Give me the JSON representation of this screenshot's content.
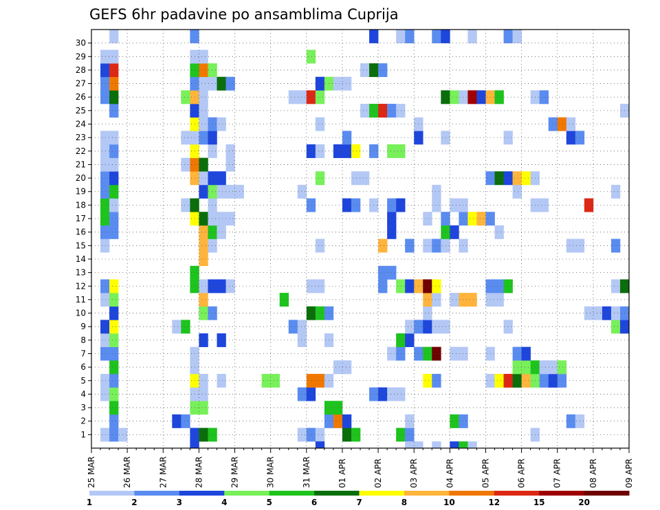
{
  "chart_data": {
    "type": "heatmap",
    "title": "GEFS 6hr padavine po ansamblima Cuprija",
    "x_tick_labels": [
      "25 MAR",
      "26 MAR",
      "27 MAR",
      "28 MAR",
      "29 MAR",
      "30 MAR",
      "31 MAR",
      "01 APR",
      "02 APR",
      "03 APR",
      "04 APR",
      "05 APR",
      "06 APR",
      "07 APR",
      "08 APR",
      "09 APR"
    ],
    "y_tick_labels": [
      "1",
      "2",
      "3",
      "4",
      "5",
      "6",
      "7",
      "8",
      "9",
      "10",
      "11",
      "12",
      "13",
      "14",
      "15",
      "16",
      "17",
      "18",
      "19",
      "20",
      "21",
      "22",
      "23",
      "24",
      "25",
      "26",
      "27",
      "28",
      "29",
      "30"
    ],
    "time_steps_per_day": 4,
    "n_time_steps": 60,
    "grid": true,
    "legend": {
      "placement": "bottom",
      "levels": [
        "1",
        "2",
        "3",
        "4",
        "5",
        "6",
        "7",
        "8",
        "10",
        "12",
        "15",
        "20"
      ],
      "colors": [
        "#b4c8f5",
        "#5a8cf0",
        "#1e46dc",
        "#78f05a",
        "#1ec31e",
        "#0a6e0a",
        "#ffff00",
        "#ffb43c",
        "#f07800",
        "#dc2814",
        "#a00000",
        "#6e0000"
      ]
    },
    "cells": [
      [
        1,
        2,
        1
      ],
      [
        1,
        3,
        2
      ],
      [
        1,
        4,
        1
      ],
      [
        1,
        12,
        3
      ],
      [
        1,
        13,
        6
      ],
      [
        1,
        14,
        5
      ],
      [
        1,
        24,
        1
      ],
      [
        1,
        25,
        2
      ],
      [
        1,
        26,
        1
      ],
      [
        1,
        29,
        6
      ],
      [
        1,
        30,
        5
      ],
      [
        1,
        35,
        5
      ],
      [
        1,
        36,
        2
      ],
      [
        1,
        50,
        1
      ],
      [
        2,
        3,
        2
      ],
      [
        2,
        10,
        3
      ],
      [
        2,
        11,
        2
      ],
      [
        2,
        27,
        2
      ],
      [
        2,
        28,
        9
      ],
      [
        2,
        29,
        3
      ],
      [
        2,
        36,
        1
      ],
      [
        2,
        41,
        5
      ],
      [
        2,
        42,
        2
      ],
      [
        2,
        54,
        2
      ],
      [
        2,
        55,
        1
      ],
      [
        3,
        3,
        5
      ],
      [
        3,
        12,
        4
      ],
      [
        3,
        13,
        4
      ],
      [
        3,
        27,
        5
      ],
      [
        3,
        28,
        5
      ],
      [
        4,
        2,
        1
      ],
      [
        4,
        3,
        4
      ],
      [
        4,
        12,
        1
      ],
      [
        4,
        13,
        1
      ],
      [
        4,
        24,
        2
      ],
      [
        4,
        25,
        3
      ],
      [
        4,
        32,
        2
      ],
      [
        4,
        33,
        3
      ],
      [
        4,
        34,
        1
      ],
      [
        4,
        35,
        1
      ],
      [
        5,
        2,
        1
      ],
      [
        5,
        3,
        2
      ],
      [
        5,
        12,
        7
      ],
      [
        5,
        13,
        1
      ],
      [
        5,
        15,
        1
      ],
      [
        5,
        20,
        4
      ],
      [
        5,
        21,
        4
      ],
      [
        5,
        25,
        9
      ],
      [
        5,
        26,
        9
      ],
      [
        5,
        27,
        1
      ],
      [
        5,
        38,
        7
      ],
      [
        5,
        39,
        2
      ],
      [
        5,
        45,
        1
      ],
      [
        5,
        46,
        7
      ],
      [
        5,
        47,
        10
      ],
      [
        5,
        48,
        6
      ],
      [
        5,
        49,
        8
      ],
      [
        5,
        50,
        4
      ],
      [
        5,
        51,
        2
      ],
      [
        5,
        52,
        3
      ],
      [
        5,
        53,
        2
      ],
      [
        6,
        3,
        5
      ],
      [
        6,
        12,
        1
      ],
      [
        6,
        28,
        1
      ],
      [
        6,
        29,
        1
      ],
      [
        6,
        48,
        4
      ],
      [
        6,
        49,
        4
      ],
      [
        6,
        50,
        5
      ],
      [
        6,
        51,
        1
      ],
      [
        6,
        52,
        1
      ],
      [
        6,
        53,
        4
      ],
      [
        7,
        2,
        2
      ],
      [
        7,
        3,
        2
      ],
      [
        7,
        12,
        1
      ],
      [
        7,
        34,
        1
      ],
      [
        7,
        35,
        2
      ],
      [
        7,
        37,
        2
      ],
      [
        7,
        38,
        5
      ],
      [
        7,
        39,
        12
      ],
      [
        7,
        41,
        1
      ],
      [
        7,
        42,
        1
      ],
      [
        7,
        45,
        1
      ],
      [
        7,
        48,
        2
      ],
      [
        7,
        49,
        3
      ],
      [
        8,
        2,
        1
      ],
      [
        8,
        3,
        4
      ],
      [
        8,
        13,
        3
      ],
      [
        8,
        15,
        3
      ],
      [
        8,
        24,
        1
      ],
      [
        8,
        27,
        1
      ],
      [
        8,
        35,
        5
      ],
      [
        8,
        36,
        3
      ],
      [
        9,
        2,
        3
      ],
      [
        9,
        3,
        7
      ],
      [
        9,
        10,
        1
      ],
      [
        9,
        11,
        5
      ],
      [
        9,
        23,
        2
      ],
      [
        9,
        24,
        1
      ],
      [
        9,
        36,
        1
      ],
      [
        9,
        37,
        2
      ],
      [
        9,
        38,
        3
      ],
      [
        9,
        39,
        1
      ],
      [
        9,
        40,
        1
      ],
      [
        9,
        47,
        1
      ],
      [
        9,
        59,
        4
      ],
      [
        9,
        60,
        3
      ],
      [
        10,
        3,
        3
      ],
      [
        10,
        13,
        4
      ],
      [
        10,
        14,
        2
      ],
      [
        10,
        25,
        6
      ],
      [
        10,
        26,
        5
      ],
      [
        10,
        27,
        2
      ],
      [
        10,
        38,
        1
      ],
      [
        10,
        56,
        1
      ],
      [
        10,
        57,
        1
      ],
      [
        10,
        58,
        3
      ],
      [
        10,
        59,
        1
      ],
      [
        10,
        60,
        2
      ],
      [
        11,
        2,
        1
      ],
      [
        11,
        3,
        4
      ],
      [
        11,
        13,
        8
      ],
      [
        11,
        22,
        5
      ],
      [
        11,
        38,
        8
      ],
      [
        11,
        39,
        1
      ],
      [
        11,
        41,
        1
      ],
      [
        11,
        42,
        8
      ],
      [
        11,
        43,
        8
      ],
      [
        11,
        45,
        1
      ],
      [
        11,
        46,
        1
      ],
      [
        12,
        2,
        2
      ],
      [
        12,
        3,
        7
      ],
      [
        12,
        12,
        5
      ],
      [
        12,
        13,
        1
      ],
      [
        12,
        14,
        3
      ],
      [
        12,
        15,
        3
      ],
      [
        12,
        16,
        1
      ],
      [
        12,
        25,
        1
      ],
      [
        12,
        26,
        1
      ],
      [
        12,
        33,
        2
      ],
      [
        12,
        35,
        4
      ],
      [
        12,
        36,
        3
      ],
      [
        12,
        37,
        8
      ],
      [
        12,
        38,
        12
      ],
      [
        12,
        39,
        7
      ],
      [
        12,
        45,
        2
      ],
      [
        12,
        46,
        2
      ],
      [
        12,
        47,
        5
      ],
      [
        12,
        59,
        1
      ],
      [
        12,
        60,
        6
      ],
      [
        13,
        12,
        5
      ],
      [
        13,
        33,
        2
      ],
      [
        13,
        34,
        2
      ],
      [
        14,
        13,
        8
      ],
      [
        15,
        2,
        1
      ],
      [
        15,
        13,
        8
      ],
      [
        15,
        14,
        1
      ],
      [
        15,
        26,
        1
      ],
      [
        15,
        33,
        8
      ],
      [
        15,
        36,
        2
      ],
      [
        15,
        38,
        1
      ],
      [
        15,
        39,
        2
      ],
      [
        15,
        40,
        1
      ],
      [
        15,
        42,
        1
      ],
      [
        15,
        54,
        1
      ],
      [
        15,
        55,
        1
      ],
      [
        15,
        59,
        2
      ],
      [
        16,
        2,
        2
      ],
      [
        16,
        3,
        2
      ],
      [
        16,
        13,
        8
      ],
      [
        16,
        14,
        5
      ],
      [
        16,
        15,
        1
      ],
      [
        16,
        34,
        3
      ],
      [
        16,
        40,
        5
      ],
      [
        16,
        41,
        3
      ],
      [
        16,
        46,
        1
      ],
      [
        17,
        2,
        5
      ],
      [
        17,
        3,
        2
      ],
      [
        17,
        12,
        7
      ],
      [
        17,
        13,
        6
      ],
      [
        17,
        14,
        1
      ],
      [
        17,
        15,
        1
      ],
      [
        17,
        16,
        1
      ],
      [
        17,
        34,
        3
      ],
      [
        17,
        38,
        1
      ],
      [
        17,
        40,
        2
      ],
      [
        17,
        42,
        2
      ],
      [
        17,
        43,
        7
      ],
      [
        17,
        44,
        8
      ],
      [
        17,
        45,
        2
      ],
      [
        18,
        2,
        5
      ],
      [
        18,
        3,
        1
      ],
      [
        18,
        11,
        1
      ],
      [
        18,
        12,
        6
      ],
      [
        18,
        14,
        1
      ],
      [
        18,
        25,
        2
      ],
      [
        18,
        29,
        3
      ],
      [
        18,
        30,
        2
      ],
      [
        18,
        32,
        1
      ],
      [
        18,
        34,
        2
      ],
      [
        18,
        35,
        3
      ],
      [
        18,
        39,
        1
      ],
      [
        18,
        41,
        1
      ],
      [
        18,
        42,
        1
      ],
      [
        18,
        50,
        1
      ],
      [
        18,
        51,
        1
      ],
      [
        18,
        56,
        10
      ],
      [
        19,
        2,
        2
      ],
      [
        19,
        3,
        5
      ],
      [
        19,
        13,
        3
      ],
      [
        19,
        14,
        4
      ],
      [
        19,
        15,
        1
      ],
      [
        19,
        16,
        1
      ],
      [
        19,
        17,
        1
      ],
      [
        19,
        24,
        1
      ],
      [
        19,
        39,
        1
      ],
      [
        19,
        48,
        1
      ],
      [
        19,
        59,
        1
      ],
      [
        20,
        2,
        2
      ],
      [
        20,
        3,
        3
      ],
      [
        20,
        12,
        8
      ],
      [
        20,
        13,
        1
      ],
      [
        20,
        14,
        3
      ],
      [
        20,
        15,
        3
      ],
      [
        20,
        26,
        4
      ],
      [
        20,
        30,
        1
      ],
      [
        20,
        31,
        1
      ],
      [
        20,
        45,
        2
      ],
      [
        20,
        46,
        6
      ],
      [
        20,
        47,
        3
      ],
      [
        20,
        48,
        8
      ],
      [
        20,
        49,
        7
      ],
      [
        20,
        50,
        1
      ],
      [
        21,
        2,
        1
      ],
      [
        21,
        3,
        1
      ],
      [
        21,
        11,
        1
      ],
      [
        21,
        12,
        9
      ],
      [
        21,
        13,
        6
      ],
      [
        21,
        16,
        1
      ],
      [
        22,
        2,
        1
      ],
      [
        22,
        3,
        2
      ],
      [
        22,
        12,
        7
      ],
      [
        22,
        14,
        1
      ],
      [
        22,
        16,
        1
      ],
      [
        22,
        25,
        3
      ],
      [
        22,
        26,
        1
      ],
      [
        22,
        28,
        3
      ],
      [
        22,
        29,
        3
      ],
      [
        22,
        30,
        7
      ],
      [
        22,
        32,
        2
      ],
      [
        22,
        34,
        4
      ],
      [
        22,
        35,
        4
      ],
      [
        23,
        2,
        1
      ],
      [
        23,
        3,
        1
      ],
      [
        23,
        11,
        1
      ],
      [
        23,
        12,
        1
      ],
      [
        23,
        13,
        2
      ],
      [
        23,
        14,
        3
      ],
      [
        23,
        29,
        2
      ],
      [
        23,
        37,
        3
      ],
      [
        23,
        40,
        1
      ],
      [
        23,
        47,
        1
      ],
      [
        23,
        54,
        3
      ],
      [
        23,
        55,
        2
      ],
      [
        24,
        12,
        7
      ],
      [
        24,
        13,
        1
      ],
      [
        24,
        14,
        2
      ],
      [
        24,
        15,
        1
      ],
      [
        24,
        26,
        1
      ],
      [
        24,
        37,
        1
      ],
      [
        24,
        52,
        2
      ],
      [
        24,
        53,
        9
      ],
      [
        24,
        54,
        1
      ],
      [
        25,
        3,
        2
      ],
      [
        25,
        12,
        3
      ],
      [
        25,
        13,
        1
      ],
      [
        25,
        31,
        1
      ],
      [
        25,
        32,
        5
      ],
      [
        25,
        33,
        10
      ],
      [
        25,
        34,
        2
      ],
      [
        25,
        35,
        1
      ],
      [
        25,
        60,
        1
      ],
      [
        26,
        2,
        2
      ],
      [
        26,
        3,
        6
      ],
      [
        26,
        11,
        4
      ],
      [
        26,
        12,
        8
      ],
      [
        26,
        13,
        1
      ],
      [
        26,
        23,
        1
      ],
      [
        26,
        24,
        1
      ],
      [
        26,
        25,
        10
      ],
      [
        26,
        26,
        4
      ],
      [
        26,
        40,
        6
      ],
      [
        26,
        41,
        4
      ],
      [
        26,
        42,
        1
      ],
      [
        26,
        43,
        11
      ],
      [
        26,
        44,
        3
      ],
      [
        26,
        45,
        8
      ],
      [
        26,
        46,
        5
      ],
      [
        26,
        50,
        1
      ],
      [
        26,
        51,
        2
      ],
      [
        27,
        2,
        2
      ],
      [
        27,
        3,
        9
      ],
      [
        27,
        12,
        2
      ],
      [
        27,
        13,
        1
      ],
      [
        27,
        14,
        1
      ],
      [
        27,
        15,
        6
      ],
      [
        27,
        16,
        2
      ],
      [
        27,
        26,
        3
      ],
      [
        27,
        27,
        4
      ],
      [
        27,
        28,
        1
      ],
      [
        27,
        29,
        1
      ],
      [
        28,
        2,
        3
      ],
      [
        28,
        3,
        10
      ],
      [
        28,
        12,
        5
      ],
      [
        28,
        13,
        9
      ],
      [
        28,
        14,
        4
      ],
      [
        28,
        31,
        1
      ],
      [
        28,
        32,
        6
      ],
      [
        28,
        33,
        2
      ],
      [
        29,
        2,
        1
      ],
      [
        29,
        3,
        1
      ],
      [
        29,
        12,
        1
      ],
      [
        29,
        13,
        1
      ],
      [
        29,
        25,
        4
      ],
      [
        30,
        3,
        1
      ],
      [
        30,
        12,
        2
      ],
      [
        30,
        32,
        3
      ],
      [
        30,
        35,
        1
      ],
      [
        30,
        36,
        2
      ],
      [
        30,
        39,
        2
      ],
      [
        30,
        40,
        3
      ],
      [
        30,
        43,
        1
      ],
      [
        30,
        47,
        2
      ],
      [
        30,
        48,
        1
      ],
      [
        0,
        36,
        1
      ],
      [
        0,
        37,
        1
      ],
      [
        0,
        39,
        1
      ],
      [
        0,
        41,
        3
      ],
      [
        0,
        42,
        5
      ],
      [
        0,
        43,
        1
      ],
      [
        0,
        12,
        3
      ],
      [
        0,
        26,
        3
      ]
    ]
  }
}
